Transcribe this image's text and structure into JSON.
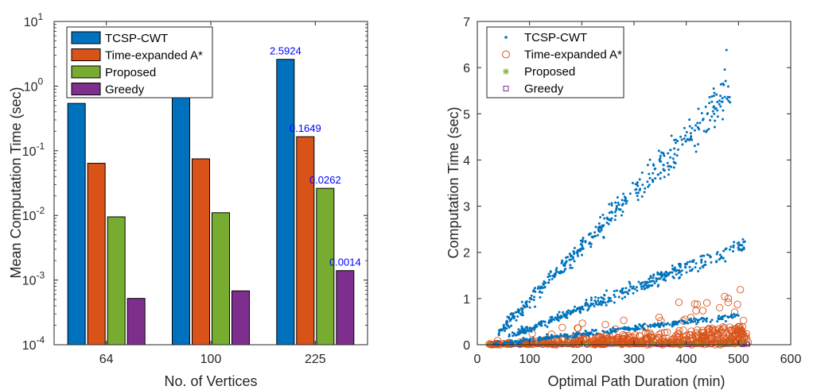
{
  "chart_data": [
    {
      "type": "bar",
      "y_scale": "log",
      "categories": [
        "64",
        "100",
        "225"
      ],
      "series": [
        {
          "name": "TCSP-CWT",
          "color": "#0072BD",
          "values": [
            0.54,
            0.85,
            2.5924
          ]
        },
        {
          "name": "Time-expanded A*",
          "color": "#D95319",
          "values": [
            0.064,
            0.075,
            0.1649
          ]
        },
        {
          "name": "Proposed",
          "color": "#77AC30",
          "values": [
            0.0095,
            0.011,
            0.0262
          ]
        },
        {
          "name": "Greedy",
          "color": "#7E2F8E",
          "values": [
            0.00052,
            0.00068,
            0.0014
          ]
        }
      ],
      "data_labels": [
        "2.5924",
        "0.1649",
        "0.0262",
        "0.0014"
      ],
      "label_color": "#0000FF",
      "xlabel": "No. of Vertices",
      "ylabel": "Mean Computation Time (sec)",
      "ylim": [
        0.0001,
        10
      ],
      "ytick_base": "10",
      "ytick_exponents": [
        "-4",
        "-3",
        "-2",
        "-1",
        "0",
        "1"
      ],
      "legend_position": "top-left",
      "grid": false
    },
    {
      "type": "scatter",
      "xlabel": "Optimal Path Duration (min)",
      "ylabel": "Computation Time (sec)",
      "xlim": [
        0,
        600
      ],
      "ylim": [
        0,
        7
      ],
      "xticks": [
        "0",
        "100",
        "200",
        "300",
        "400",
        "500",
        "600"
      ],
      "yticks": [
        "0",
        "1",
        "2",
        "3",
        "4",
        "5",
        "6",
        "7"
      ],
      "legend_position": "top-left",
      "grid": false,
      "x_range_of_points": [
        20,
        520
      ],
      "series": [
        {
          "name": "TCSP-CWT",
          "color": "#0072BD",
          "marker": "•",
          "trend": "three diverging bands up to ~5.7 s at ~480 min, isolated max 6.38 s at 477 min"
        },
        {
          "name": "Time-expanded A*",
          "color": "#D95319",
          "marker": "o",
          "trend": "mostly below 0.6 s, scattered up to ~1.2 s near 480 min"
        },
        {
          "name": "Proposed",
          "color": "#77AC30",
          "marker": "*",
          "trend": "near zero"
        },
        {
          "name": "Greedy",
          "color": "#7E2F8E",
          "marker": "□",
          "trend": "near zero"
        }
      ]
    }
  ]
}
